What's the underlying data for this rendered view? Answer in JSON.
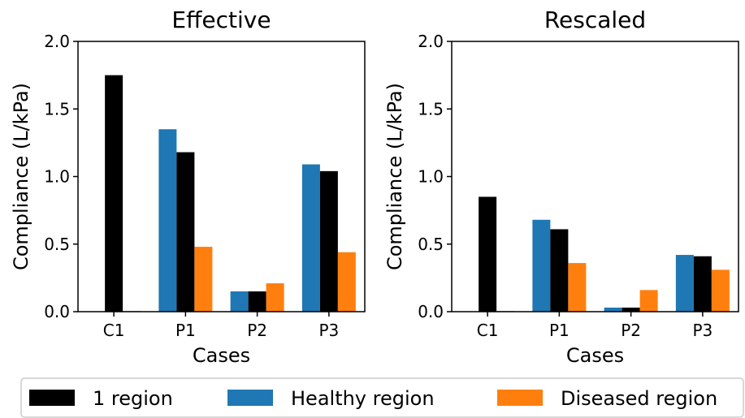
{
  "chart_data": [
    {
      "type": "bar",
      "title": "Effective",
      "xlabel": "Cases",
      "ylabel": "Compliance (L/kPa)",
      "ylim": [
        0,
        2.0
      ],
      "yticks": [
        "0.0",
        "0.5",
        "1.0",
        "1.5",
        "2.0"
      ],
      "categories": [
        "C1",
        "P1",
        "P2",
        "P3"
      ],
      "series": [
        {
          "name": "Healthy region",
          "color": "#1f77b4",
          "values": [
            null,
            1.35,
            0.15,
            1.09
          ]
        },
        {
          "name": "1 region",
          "color": "#000000",
          "values": [
            1.75,
            1.18,
            0.15,
            1.04
          ]
        },
        {
          "name": "Diseased region",
          "color": "#ff7f0e",
          "values": [
            0.005,
            0.48,
            0.21,
            0.44
          ]
        }
      ]
    },
    {
      "type": "bar",
      "title": "Rescaled",
      "xlabel": "Cases",
      "ylabel": "Compliance (L/kPa)",
      "ylim": [
        0,
        2.0
      ],
      "yticks": [
        "0.0",
        "0.5",
        "1.0",
        "1.5",
        "2.0"
      ],
      "categories": [
        "C1",
        "P1",
        "P2",
        "P3"
      ],
      "series": [
        {
          "name": "Healthy region",
          "color": "#1f77b4",
          "values": [
            null,
            0.68,
            0.03,
            0.42
          ]
        },
        {
          "name": "1 region",
          "color": "#000000",
          "values": [
            0.85,
            0.61,
            0.03,
            0.41
          ]
        },
        {
          "name": "Diseased region",
          "color": "#ff7f0e",
          "values": [
            0.005,
            0.36,
            0.16,
            0.31
          ]
        }
      ]
    }
  ],
  "legend": {
    "placement": "bottom",
    "items": [
      {
        "label": "1 region",
        "color": "#000000"
      },
      {
        "label": "Healthy region",
        "color": "#1f77b4"
      },
      {
        "label": "Diseased region",
        "color": "#ff7f0e"
      }
    ]
  }
}
